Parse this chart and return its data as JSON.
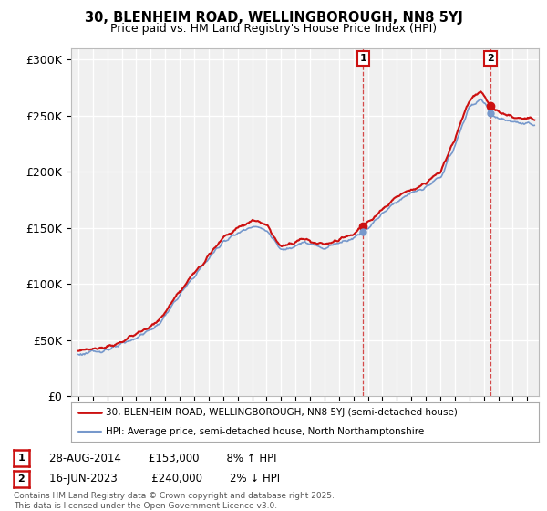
{
  "title_line1": "30, BLENHEIM ROAD, WELLINGBOROUGH, NN8 5YJ",
  "title_line2": "Price paid vs. HM Land Registry's House Price Index (HPI)",
  "ylim": [
    0,
    310000
  ],
  "yticks": [
    0,
    50000,
    100000,
    150000,
    200000,
    250000,
    300000
  ],
  "ytick_labels": [
    "£0",
    "£50K",
    "£100K",
    "£150K",
    "£200K",
    "£250K",
    "£300K"
  ],
  "xstart": 1994.5,
  "xend": 2026.8,
  "bg_color": "#f0f0f0",
  "grid_color": "#ffffff",
  "hpi_color": "#7799cc",
  "price_color": "#cc1111",
  "marker1_year": 2014.66,
  "marker2_year": 2023.46,
  "marker1_price": 153000,
  "marker2_price": 240000,
  "ann1_label": "1",
  "ann2_label": "2",
  "legend_line1": "30, BLENHEIM ROAD, WELLINGBOROUGH, NN8 5YJ (semi-detached house)",
  "legend_line2": "HPI: Average price, semi-detached house, North Northamptonshire",
  "ann1_text": "28-AUG-2014        £153,000        8% ↑ HPI",
  "ann2_text": "16-JUN-2023          £240,000        2% ↓ HPI",
  "footer": "Contains HM Land Registry data © Crown copyright and database right 2025.\nThis data is licensed under the Open Government Licence v3.0.",
  "hpi_segments_x": [
    1995.0,
    1996.0,
    1997.5,
    1999.0,
    2000.5,
    2002.0,
    2003.5,
    2005.0,
    2007.0,
    2008.0,
    2009.0,
    2010.5,
    2012.0,
    2013.0,
    2014.0,
    2015.0,
    2016.0,
    2017.0,
    2018.0,
    2019.0,
    2020.0,
    2021.0,
    2022.0,
    2022.8,
    2023.5,
    2024.0,
    2025.0,
    2026.5
  ],
  "hpi_segments_y": [
    37000,
    39000,
    43000,
    52000,
    63000,
    90000,
    115000,
    138000,
    152000,
    148000,
    130000,
    137000,
    132000,
    137000,
    141000,
    150000,
    163000,
    174000,
    181000,
    186000,
    195000,
    223000,
    258000,
    265000,
    252000,
    248000,
    244000,
    242000
  ],
  "price_segments_x": [
    1995.0,
    1996.0,
    1997.5,
    1999.0,
    2000.5,
    2002.0,
    2003.5,
    2005.0,
    2007.0,
    2008.0,
    2009.0,
    2010.5,
    2012.0,
    2013.0,
    2014.0,
    2015.0,
    2016.0,
    2017.0,
    2018.0,
    2019.0,
    2020.0,
    2021.0,
    2022.0,
    2022.8,
    2023.5,
    2024.0,
    2025.0,
    2026.5
  ],
  "price_segments_y": [
    40000,
    42000,
    45500,
    55000,
    66000,
    93000,
    118000,
    142000,
    157000,
    153000,
    133000,
    140000,
    135000,
    140000,
    145000,
    155000,
    167000,
    178000,
    184000,
    190000,
    200000,
    229000,
    264000,
    272000,
    258000,
    253000,
    249000,
    247000
  ]
}
